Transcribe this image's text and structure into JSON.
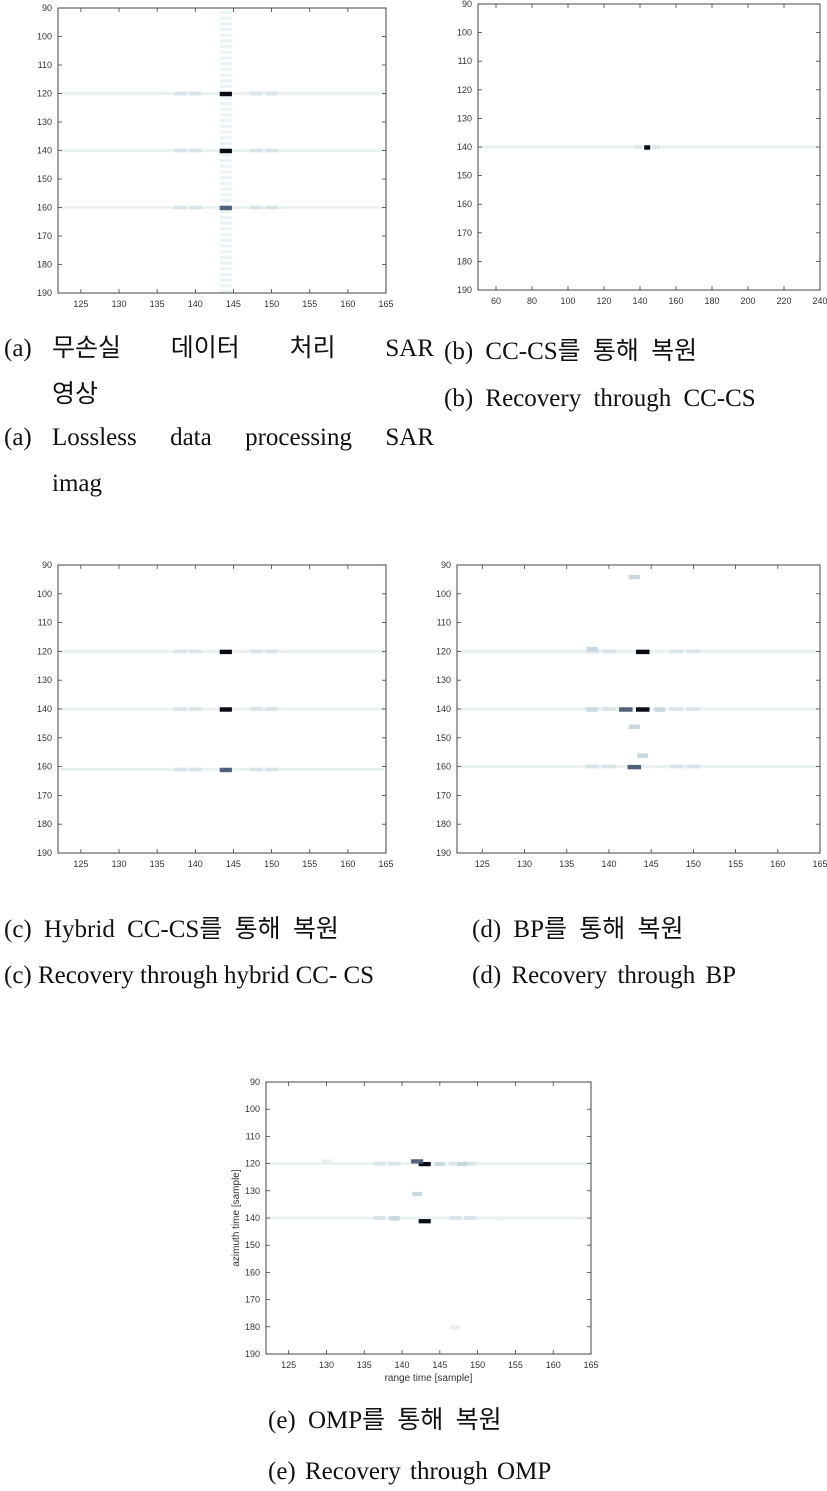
{
  "colors": {
    "frame": "#444444",
    "dark": "#0a0a14",
    "mid": "#50607a",
    "light": "#c8d8df",
    "faint": "#e8f0f2"
  },
  "captions": {
    "a_ko_prefix": "(a)",
    "a_ko_line1": "무손실 데이터 처리 SAR",
    "a_ko_line2": "영상",
    "a_en_prefix": "(a)",
    "a_en_line1": "Lossless data processing SAR",
    "a_en_line2": "imag",
    "b_ko": "(b) CC-CS를 통해 복원",
    "b_en": "(b) Recovery through CC-CS",
    "c_ko": "(c) Hybrid CC-CS를 통해 복원",
    "c_en": "(c) Recovery through hybrid CC- CS",
    "d_ko": "(d) BP를 통해 복원",
    "d_en": "(d) Recovery through BP",
    "e_ko": "(e) OMP를 통해 복원",
    "e_en": "(e) Recovery through OMP"
  },
  "chart_data": [
    {
      "id": "a",
      "type": "heatmap",
      "xlabel": "",
      "ylabel": "",
      "xlim": [
        122,
        165
      ],
      "ylim": [
        90,
        190
      ],
      "xticks": [
        125,
        130,
        135,
        140,
        145,
        150,
        155,
        160,
        165
      ],
      "yticks": [
        90,
        100,
        110,
        120,
        130,
        140,
        150,
        160,
        170,
        180,
        190
      ],
      "peaks": [
        {
          "x": 144,
          "y": 120,
          "level": "dark"
        },
        {
          "x": 144,
          "y": 140,
          "level": "dark"
        },
        {
          "x": 144,
          "y": 160,
          "level": "mid"
        }
      ],
      "sidelobe_rows": [
        120,
        140,
        160
      ],
      "sidelobe_col": 144
    },
    {
      "id": "b",
      "type": "heatmap",
      "xlabel": "",
      "ylabel": "",
      "xlim": [
        50,
        240
      ],
      "ylim": [
        90,
        190
      ],
      "xticks": [
        60,
        80,
        100,
        120,
        140,
        160,
        180,
        200,
        220,
        240
      ],
      "yticks": [
        90,
        100,
        110,
        120,
        130,
        140,
        150,
        160,
        170,
        180,
        190
      ],
      "peaks": [
        {
          "x": 144,
          "y": 140,
          "level": "dark"
        }
      ],
      "sidelobe_rows": [
        140
      ]
    },
    {
      "id": "c",
      "type": "heatmap",
      "xlabel": "",
      "ylabel": "",
      "xlim": [
        122,
        165
      ],
      "ylim": [
        90,
        190
      ],
      "xticks": [
        125,
        130,
        135,
        140,
        145,
        150,
        155,
        160,
        165
      ],
      "yticks": [
        90,
        100,
        110,
        120,
        130,
        140,
        150,
        160,
        170,
        180,
        190
      ],
      "peaks": [
        {
          "x": 144,
          "y": 120,
          "level": "dark"
        },
        {
          "x": 144,
          "y": 140,
          "level": "dark"
        },
        {
          "x": 144,
          "y": 161,
          "level": "mid"
        }
      ],
      "sidelobe_rows": [
        120,
        140,
        161
      ]
    },
    {
      "id": "d",
      "type": "heatmap",
      "xlabel": "",
      "ylabel": "",
      "xlim": [
        122,
        165
      ],
      "ylim": [
        90,
        190
      ],
      "xticks": [
        125,
        130,
        135,
        140,
        145,
        150,
        155,
        160,
        165
      ],
      "yticks": [
        90,
        100,
        110,
        120,
        130,
        140,
        150,
        160,
        170,
        180,
        190
      ],
      "peaks": [
        {
          "x": 144,
          "y": 120,
          "level": "dark"
        },
        {
          "x": 144,
          "y": 140,
          "level": "dark"
        },
        {
          "x": 143,
          "y": 160,
          "level": "mid"
        },
        {
          "x": 142,
          "y": 140,
          "level": "mid"
        },
        {
          "x": 143,
          "y": 94,
          "level": "light"
        },
        {
          "x": 144,
          "y": 156,
          "level": "light"
        },
        {
          "x": 138,
          "y": 140,
          "level": "light"
        },
        {
          "x": 138,
          "y": 119,
          "level": "light"
        },
        {
          "x": 146,
          "y": 140,
          "level": "light"
        },
        {
          "x": 143,
          "y": 146,
          "level": "light"
        }
      ],
      "sidelobe_rows": [
        120,
        140,
        160
      ]
    },
    {
      "id": "e",
      "type": "heatmap",
      "xlabel": "range time [sample]",
      "ylabel": "azimuth time [sample]",
      "xlim": [
        122,
        165
      ],
      "ylim": [
        90,
        190
      ],
      "xticks": [
        125,
        130,
        135,
        140,
        145,
        150,
        155,
        160,
        165
      ],
      "yticks": [
        90,
        100,
        110,
        120,
        130,
        140,
        150,
        160,
        170,
        180,
        190
      ],
      "peaks": [
        {
          "x": 143,
          "y": 120,
          "level": "dark"
        },
        {
          "x": 143,
          "y": 141,
          "level": "dark"
        },
        {
          "x": 142,
          "y": 119,
          "level": "mid"
        },
        {
          "x": 142,
          "y": 131,
          "level": "light"
        },
        {
          "x": 139,
          "y": 140,
          "level": "light"
        },
        {
          "x": 148,
          "y": 120,
          "level": "light"
        },
        {
          "x": 145,
          "y": 120,
          "level": "light"
        },
        {
          "x": 130,
          "y": 119,
          "level": "faint"
        },
        {
          "x": 153,
          "y": 140,
          "level": "faint"
        },
        {
          "x": 147,
          "y": 180,
          "level": "faint"
        }
      ],
      "sidelobe_rows": [
        120,
        140
      ]
    }
  ]
}
